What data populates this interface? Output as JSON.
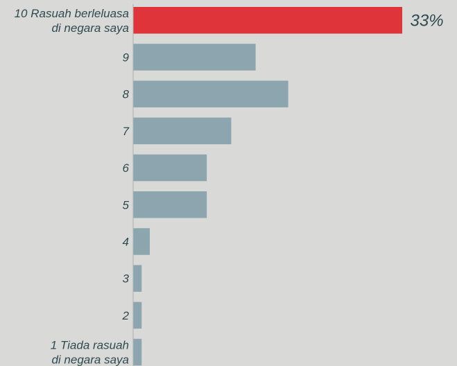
{
  "chart_data": {
    "type": "bar",
    "orientation": "horizontal",
    "categories": [
      [
        "10 Rasuah berleluasa",
        "di negara saya"
      ],
      [
        "9"
      ],
      [
        "8"
      ],
      [
        "7"
      ],
      [
        "6"
      ],
      [
        "5"
      ],
      [
        "4"
      ],
      [
        "3"
      ],
      [
        "2"
      ],
      [
        "1 Tiada rasuah",
        "di negara saya"
      ]
    ],
    "values": [
      33,
      15,
      19,
      12,
      9,
      9,
      2,
      1,
      1,
      1
    ],
    "data_labels": [
      "33%",
      "",
      "",
      "",
      "",
      "",
      "",
      "",
      "",
      ""
    ],
    "highlight_index": 0,
    "xlim": [
      0,
      35
    ],
    "grid": false,
    "colors": {
      "highlight": "#df3439",
      "default": "#8ca5ae",
      "axis": "#a9b5b8",
      "label": "#2f4a4f",
      "highlight_label": "#2f4a4f"
    }
  }
}
